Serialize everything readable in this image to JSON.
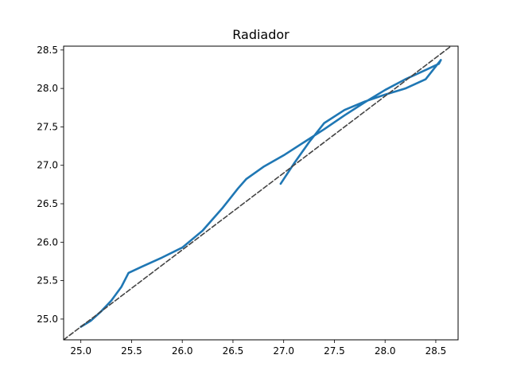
{
  "chart_data": {
    "type": "line",
    "title": "Radiador",
    "xlabel": "",
    "ylabel": "",
    "xlim": [
      24.83,
      28.72
    ],
    "ylim": [
      24.73,
      28.55
    ],
    "xticks": [
      25.0,
      25.5,
      26.0,
      26.5,
      27.0,
      27.5,
      28.0,
      28.5
    ],
    "yticks": [
      25.0,
      25.5,
      26.0,
      26.5,
      27.0,
      27.5,
      28.0,
      28.5
    ],
    "xtick_labels": [
      "25.0",
      "25.5",
      "26.0",
      "26.5",
      "27.0",
      "27.5",
      "28.0",
      "28.5"
    ],
    "ytick_labels": [
      "25.0",
      "25.5",
      "26.0",
      "26.5",
      "27.0",
      "27.5",
      "28.0",
      "28.5"
    ],
    "grid": false,
    "legend": "none",
    "series": [
      {
        "color": "#1f77b4",
        "style": "solid",
        "x": [
          25.0,
          25.1,
          25.2,
          25.3,
          25.4,
          25.47,
          25.6,
          25.8,
          26.0,
          26.2,
          26.4,
          26.55,
          26.63,
          26.8,
          27.0,
          27.2,
          27.4,
          27.6,
          27.8,
          28.0,
          28.2,
          28.4,
          28.53,
          28.55,
          28.52,
          28.4,
          28.2,
          28.0,
          27.8,
          27.6,
          27.4,
          27.25,
          27.1,
          26.97
        ],
        "y": [
          24.9,
          24.98,
          25.1,
          25.24,
          25.42,
          25.6,
          25.68,
          25.8,
          25.93,
          26.15,
          26.45,
          26.7,
          26.82,
          26.98,
          27.13,
          27.3,
          27.47,
          27.65,
          27.82,
          27.98,
          28.12,
          28.24,
          28.32,
          28.37,
          28.32,
          28.12,
          28.0,
          27.92,
          27.83,
          27.72,
          27.55,
          27.3,
          27.02,
          26.76
        ]
      },
      {
        "color": "#444444",
        "style": "dashed",
        "x": [
          24.83,
          28.72
        ],
        "y": [
          24.73,
          28.62
        ]
      }
    ]
  }
}
